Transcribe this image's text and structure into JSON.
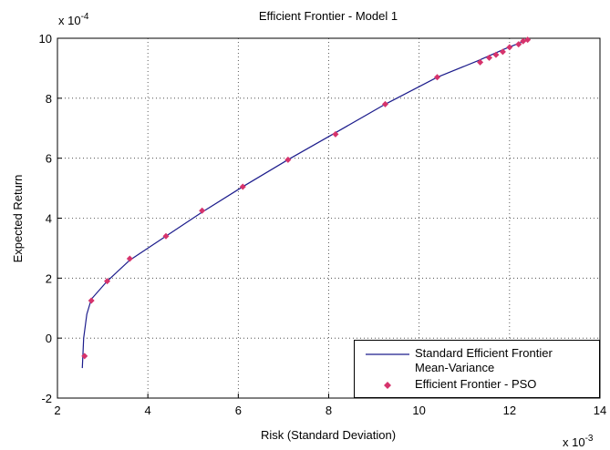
{
  "chart_data": {
    "type": "line",
    "title": "Efficient Frontier - Model 1",
    "x_label": "Risk (Standard Deviation)",
    "y_label": "Expected Return",
    "x_scale_base": "x 10",
    "x_scale_exp": "-3",
    "y_scale_base": "x 10",
    "y_scale_exp": "-4",
    "xlim": [
      2,
      14
    ],
    "xticks": [
      2,
      4,
      6,
      8,
      10,
      12,
      14
    ],
    "ylim": [
      -2,
      10
    ],
    "yticks": [
      -2,
      0,
      2,
      4,
      6,
      8,
      10
    ],
    "grid": true,
    "legend": "lower right",
    "series": [
      {
        "name": "Standard Efficient Frontier Mean-Variance",
        "type": "line",
        "color": "#1c1c8c",
        "x": [
          2.55,
          2.58,
          2.65,
          2.75,
          3.1,
          3.6,
          4.4,
          5.2,
          6.1,
          7.1,
          8.15,
          9.25,
          10.4,
          11.3,
          11.9,
          12.35
        ],
        "values": [
          -1.0,
          0,
          0.8,
          1.3,
          1.9,
          2.6,
          3.4,
          4.2,
          5.05,
          5.95,
          6.85,
          7.8,
          8.7,
          9.25,
          9.65,
          9.92
        ]
      },
      {
        "name": "Efficient Frontier - PSO",
        "type": "scatter",
        "color": "#d6336c",
        "x": [
          2.6,
          2.75,
          3.1,
          3.6,
          4.4,
          5.2,
          6.1,
          7.1,
          8.15,
          9.25,
          10.4,
          11.35,
          11.55,
          11.7,
          11.85,
          12.0,
          12.2,
          12.3,
          12.4
        ],
        "values": [
          -0.6,
          1.25,
          1.9,
          2.65,
          3.4,
          4.25,
          5.05,
          5.95,
          6.8,
          7.8,
          8.7,
          9.2,
          9.35,
          9.45,
          9.55,
          9.7,
          9.8,
          9.9,
          9.95
        ]
      }
    ]
  }
}
